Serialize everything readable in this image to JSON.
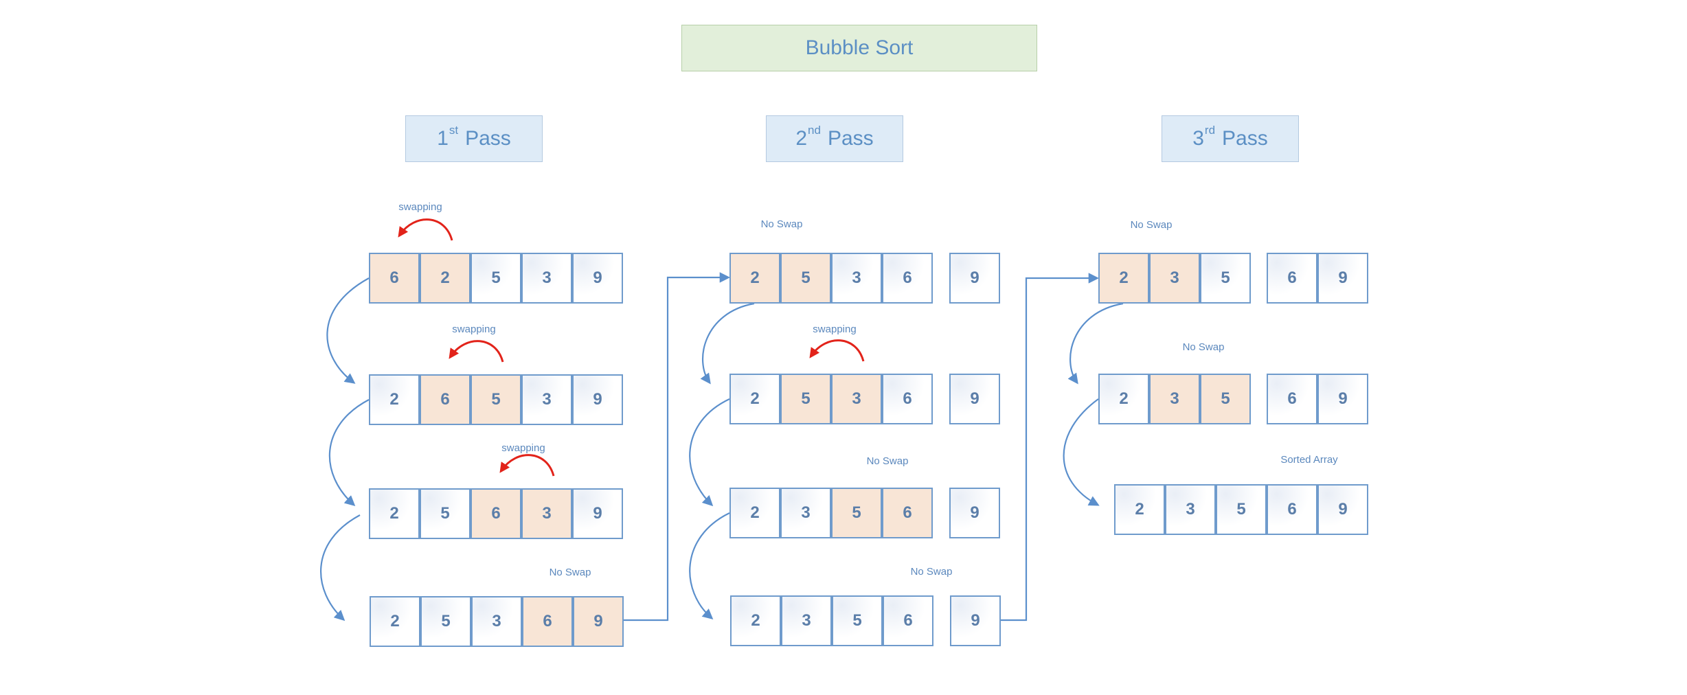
{
  "title": "Bubble Sort",
  "passes": [
    {
      "number": "1",
      "suffix": "st",
      "word": "Pass"
    },
    {
      "number": "2",
      "suffix": "nd",
      "word": "Pass"
    },
    {
      "number": "3",
      "suffix": "rd",
      "word": "Pass"
    }
  ],
  "rows": [
    {
      "pass": 1,
      "step": 1,
      "values": [
        "6",
        "2",
        "5",
        "3",
        "9"
      ],
      "highlight": [
        0,
        1
      ],
      "label": "swapping",
      "swap_arrow": true
    },
    {
      "pass": 1,
      "step": 2,
      "values": [
        "2",
        "6",
        "5",
        "3",
        "9"
      ],
      "highlight": [
        1,
        2
      ],
      "label": "swapping",
      "swap_arrow": true
    },
    {
      "pass": 1,
      "step": 3,
      "values": [
        "2",
        "5",
        "6",
        "3",
        "9"
      ],
      "highlight": [
        2,
        3
      ],
      "label": "swapping",
      "swap_arrow": true
    },
    {
      "pass": 1,
      "step": 4,
      "values": [
        "2",
        "5",
        "3",
        "6",
        "9"
      ],
      "highlight": [
        3,
        4
      ],
      "label": "No Swap",
      "swap_arrow": false
    },
    {
      "pass": 2,
      "step": 1,
      "values": [
        "2",
        "5",
        "3",
        "6",
        "9"
      ],
      "highlight": [
        0,
        1
      ],
      "label": "No Swap",
      "swap_arrow": false
    },
    {
      "pass": 2,
      "step": 2,
      "values": [
        "2",
        "5",
        "3",
        "6",
        "9"
      ],
      "highlight": [
        1,
        2
      ],
      "label": "swapping",
      "swap_arrow": true
    },
    {
      "pass": 2,
      "step": 3,
      "values": [
        "2",
        "3",
        "5",
        "6",
        "9"
      ],
      "highlight": [
        2,
        3
      ],
      "label": "No Swap",
      "swap_arrow": false
    },
    {
      "pass": 2,
      "step": 4,
      "values": [
        "2",
        "3",
        "5",
        "6",
        "9"
      ],
      "highlight": [],
      "label": "No Swap",
      "swap_arrow": false
    },
    {
      "pass": 3,
      "step": 1,
      "values": [
        "2",
        "3",
        "5",
        "6",
        "9"
      ],
      "highlight": [
        0,
        1
      ],
      "label": "No Swap",
      "swap_arrow": false
    },
    {
      "pass": 3,
      "step": 2,
      "values": [
        "2",
        "3",
        "5",
        "6",
        "9"
      ],
      "highlight": [
        1,
        2
      ],
      "label": "No Swap",
      "swap_arrow": false
    },
    {
      "pass": 3,
      "step": 3,
      "values": [
        "2",
        "3",
        "5",
        "6",
        "9"
      ],
      "highlight": [],
      "label": "Sorted Array",
      "swap_arrow": false
    }
  ],
  "colors": {
    "highlight": "#f8e5d6",
    "cell_border": "#6f9bcc",
    "flow_arrow": "#5b8fcc",
    "swap_arrow": "#e2231a",
    "title_fill": "#e2efda",
    "pass_fill": "#deebf7"
  }
}
